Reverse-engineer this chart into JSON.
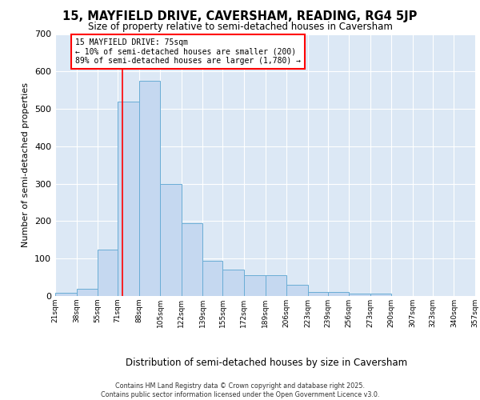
{
  "title": "15, MAYFIELD DRIVE, CAVERSHAM, READING, RG4 5JP",
  "subtitle": "Size of property relative to semi-detached houses in Caversham",
  "xlabel": "Distribution of semi-detached houses by size in Caversham",
  "ylabel": "Number of semi-detached properties",
  "bin_edges": [
    21,
    38,
    55,
    71,
    88,
    105,
    122,
    139,
    155,
    172,
    189,
    206,
    223,
    239,
    256,
    273,
    290,
    307,
    323,
    340,
    357
  ],
  "bar_heights": [
    8,
    20,
    125,
    520,
    575,
    300,
    195,
    95,
    70,
    55,
    55,
    30,
    10,
    10,
    7,
    7,
    0,
    0,
    0,
    0
  ],
  "bar_color": "#c5d8f0",
  "bar_edge_color": "#6aadd5",
  "red_line_x": 75,
  "annotation_title": "15 MAYFIELD DRIVE: 75sqm",
  "annotation_line1": "← 10% of semi-detached houses are smaller (200)",
  "annotation_line2": "89% of semi-detached houses are larger (1,780) →",
  "ylim": [
    0,
    700
  ],
  "yticks": [
    0,
    100,
    200,
    300,
    400,
    500,
    600,
    700
  ],
  "background_color": "#dce8f5",
  "grid_color": "#ffffff",
  "footer_line1": "Contains HM Land Registry data © Crown copyright and database right 2025.",
  "footer_line2": "Contains public sector information licensed under the Open Government Licence v3.0."
}
